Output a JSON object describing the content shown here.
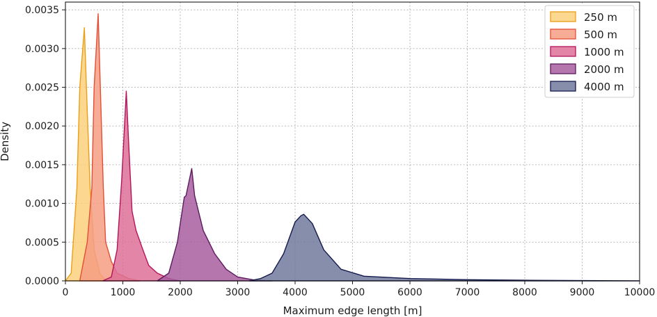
{
  "chart_data": {
    "type": "area",
    "title": "",
    "xlabel": "Maximum edge length [m]",
    "ylabel": "Density",
    "xlim": [
      0,
      10000
    ],
    "ylim": [
      0,
      0.0036
    ],
    "x_ticks": [
      "0",
      "1000",
      "2000",
      "3000",
      "4000",
      "5000",
      "6000",
      "7000",
      "8000",
      "9000",
      "10000"
    ],
    "y_ticks": [
      "0.0000",
      "0.0005",
      "0.0010",
      "0.0015",
      "0.0020",
      "0.0025",
      "0.0030",
      "0.0035"
    ],
    "grid": true,
    "legend_position": "top-right",
    "series": [
      {
        "name": "250 m",
        "fill": "#fbd07c",
        "stroke": "#ec9f16",
        "points": [
          [
            0,
            0
          ],
          [
            100,
            0.0001
          ],
          [
            200,
            0.0012
          ],
          [
            250,
            0.0025
          ],
          [
            330,
            0.00327
          ],
          [
            380,
            0.0022
          ],
          [
            430,
            0.0012
          ],
          [
            500,
            0.0004
          ],
          [
            600,
            0.0001
          ],
          [
            700,
            0
          ]
        ]
      },
      {
        "name": "500 m",
        "fill": "#f59e82",
        "stroke": "#e34e34",
        "points": [
          [
            250,
            0
          ],
          [
            380,
            0.0005
          ],
          [
            460,
            0.0012
          ],
          [
            500,
            0.0025
          ],
          [
            570,
            0.00345
          ],
          [
            620,
            0.0022
          ],
          [
            660,
            0.0012
          ],
          [
            700,
            0.0005
          ],
          [
            800,
            0.00025
          ],
          [
            900,
            0.0001
          ],
          [
            1100,
            3e-05
          ],
          [
            1300,
            0
          ]
        ]
      },
      {
        "name": "1000 m",
        "fill": "#dd7097",
        "stroke": "#b4135a",
        "points": [
          [
            650,
            0
          ],
          [
            800,
            5e-05
          ],
          [
            900,
            0.0004
          ],
          [
            980,
            0.0013
          ],
          [
            1060,
            0.00245
          ],
          [
            1100,
            0.0018
          ],
          [
            1160,
            0.0009
          ],
          [
            1230,
            0.00065
          ],
          [
            1350,
            0.0004
          ],
          [
            1450,
            0.0002
          ],
          [
            1600,
            0.0001
          ],
          [
            1800,
            3e-05
          ],
          [
            2000,
            0
          ]
        ]
      },
      {
        "name": "2000 m",
        "fill": "#a75e9f",
        "stroke": "#5b1a5e",
        "points": [
          [
            1600,
            0
          ],
          [
            1800,
            0.0001
          ],
          [
            1950,
            0.0005
          ],
          [
            2070,
            0.00108
          ],
          [
            2100,
            0.0011
          ],
          [
            2200,
            0.00145
          ],
          [
            2250,
            0.0011
          ],
          [
            2400,
            0.00065
          ],
          [
            2600,
            0.00035
          ],
          [
            2800,
            0.00015
          ],
          [
            3000,
            5e-05
          ],
          [
            3300,
            1e-05
          ],
          [
            3600,
            0
          ]
        ]
      },
      {
        "name": "4000 m",
        "fill": "#717a9c",
        "stroke": "#13194d",
        "points": [
          [
            3200,
            0
          ],
          [
            3400,
            3e-05
          ],
          [
            3600,
            0.0001
          ],
          [
            3800,
            0.00035
          ],
          [
            4000,
            0.00076
          ],
          [
            4100,
            0.00084
          ],
          [
            4150,
            0.00086
          ],
          [
            4300,
            0.00074
          ],
          [
            4500,
            0.0004
          ],
          [
            4800,
            0.00015
          ],
          [
            5200,
            6e-05
          ],
          [
            6000,
            3e-05
          ],
          [
            7000,
            1.5e-05
          ],
          [
            8000,
            8e-06
          ],
          [
            9000,
            4e-06
          ],
          [
            10000,
            0
          ]
        ]
      }
    ]
  }
}
